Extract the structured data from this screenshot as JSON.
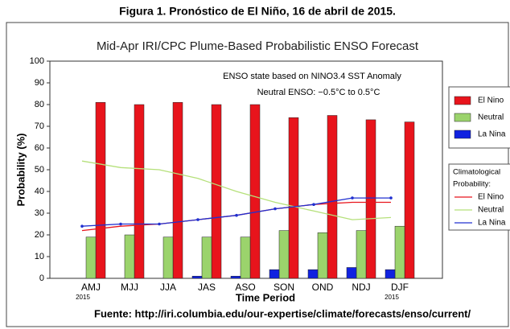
{
  "heading": "Figura 1. Pronóstico de El Niño, 16 de abril de 2015.",
  "footer": "Fuente: http://iri.columbia.edu/our-expertise/climate/forecasts/enso/current/",
  "chart_data": {
    "type": "bar",
    "title": "Mid-Apr IRI/CPC Plume-Based Probabilistic ENSO Forecast",
    "annotations": [
      "ENSO state based on NINO3.4 SST Anomaly",
      "Neutral ENSO: −0.5°C to 0.5°C"
    ],
    "x_label": "Time Period",
    "y_label": "Probability (%)",
    "categories": [
      "AMJ",
      "MJJ",
      "JJA",
      "JAS",
      "ASO",
      "SON",
      "OND",
      "NDJ",
      "DJF"
    ],
    "category_sublabels": [
      "2015",
      null,
      null,
      null,
      null,
      null,
      null,
      null,
      "2015"
    ],
    "ylim": [
      0,
      100
    ],
    "yticks": [
      0,
      10,
      20,
      30,
      40,
      50,
      60,
      70,
      80,
      90,
      100
    ],
    "grid": false,
    "series": [
      {
        "name": "El Nino",
        "type": "bar",
        "color": "#e8141c",
        "values": [
          81,
          80,
          81,
          80,
          80,
          74,
          75,
          73,
          72
        ]
      },
      {
        "name": "Neutral",
        "type": "bar",
        "color": "#9bd36c",
        "values": [
          19,
          20,
          19,
          19,
          19,
          22,
          21,
          22,
          24
        ]
      },
      {
        "name": "La Nina",
        "type": "bar",
        "color": "#1022e0",
        "values": [
          0,
          0,
          0,
          1,
          1,
          4,
          4,
          5,
          4
        ]
      }
    ],
    "climatology_title": [
      "Climatological",
      "Probability:"
    ],
    "climatology": [
      {
        "name": "El Nino",
        "type": "line",
        "color": "#e8141c",
        "values": [
          22,
          24,
          25,
          27,
          29,
          32,
          34,
          35,
          35
        ]
      },
      {
        "name": "Neutral",
        "type": "line",
        "color": "#b5e07a",
        "values": [
          54,
          51,
          50,
          46,
          40,
          35,
          31,
          27,
          28
        ]
      },
      {
        "name": "La Nina",
        "type": "line",
        "color": "#2030d0",
        "values": [
          24,
          25,
          25,
          27,
          29,
          32,
          34,
          37,
          37
        ]
      }
    ]
  }
}
